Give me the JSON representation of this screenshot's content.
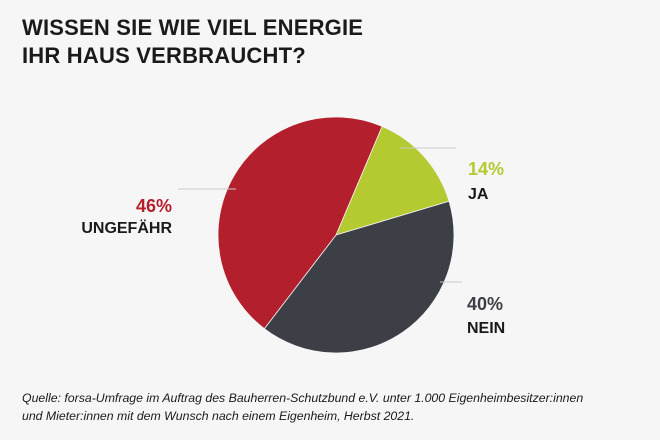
{
  "title": {
    "line1": "WISSEN SIE WIE VIEL ENERGIE",
    "line2": "IHR HAUS VERBRAUCHT?"
  },
  "chart_data": {
    "type": "pie",
    "title": "WISSEN SIE WIE VIEL ENERGIE IHR HAUS VERBRAUCHT?",
    "slices": [
      {
        "label": "JA",
        "value": 14,
        "value_label": "14%",
        "color": "#b5c930"
      },
      {
        "label": "NEIN",
        "value": 40,
        "value_label": "40%",
        "color": "#3c3f45"
      },
      {
        "label": "UNGEFÄHR",
        "value": 46,
        "value_label": "46%",
        "color": "#b41f2d"
      }
    ]
  },
  "source": {
    "line1": "Quelle: forsa-Umfrage im Auftrag des Bauherren-Schutzbund e.V. unter 1.000 Eigenheimbesitzer:innen",
    "line2": "und Mieter:innen mit dem Wunsch nach einem Eigenheim, Herbst 2021."
  }
}
